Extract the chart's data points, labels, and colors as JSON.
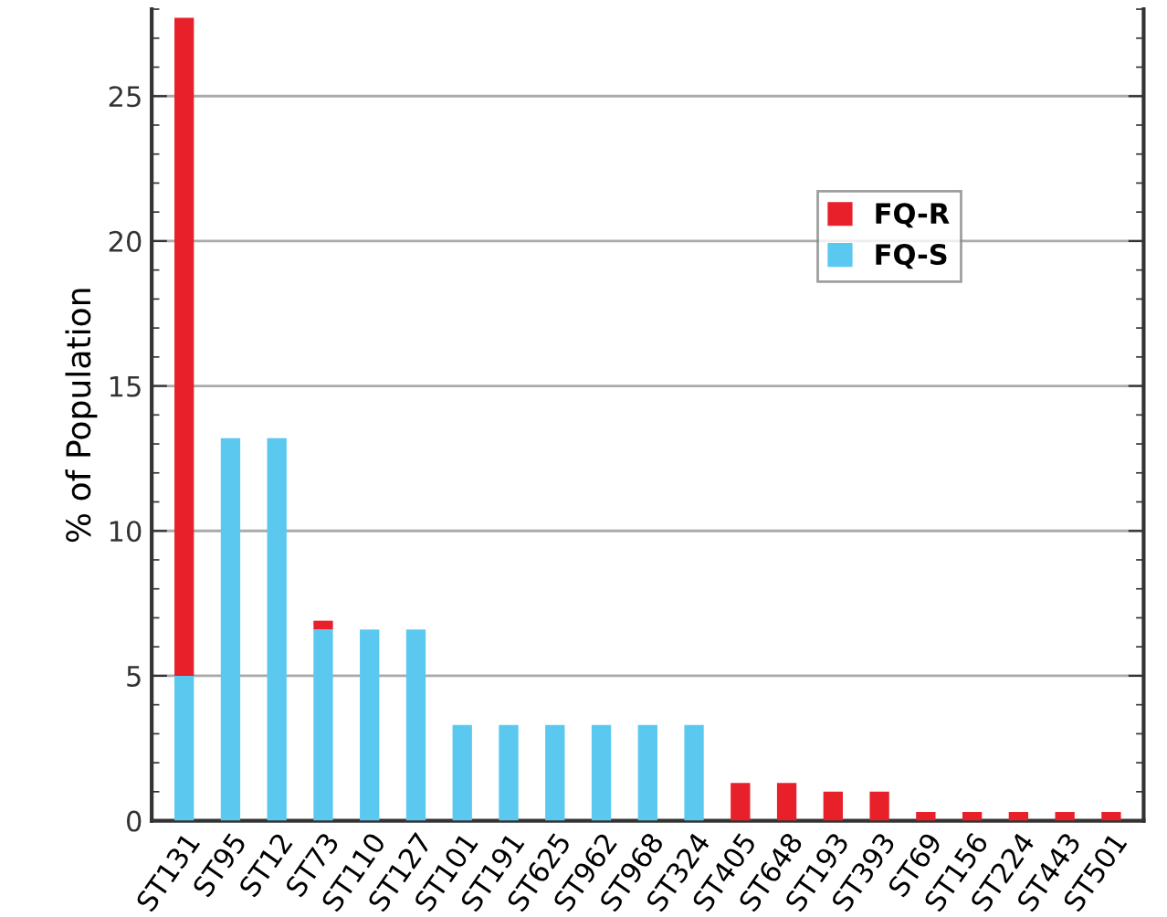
{
  "chart_data": {
    "type": "bar",
    "stacked": true,
    "ylabel": "% of Population",
    "categories": [
      "ST131",
      "ST95",
      "ST12",
      "ST73",
      "ST110",
      "ST127",
      "ST101",
      "ST191",
      "ST625",
      "ST962",
      "ST968",
      "ST324",
      "ST405",
      "ST648",
      "ST193",
      "ST393",
      "ST69",
      "ST156",
      "ST224",
      "ST443",
      "ST501"
    ],
    "series": [
      {
        "name": "FQ-S",
        "color": "#5bc8f0",
        "values": [
          5.0,
          13.2,
          13.2,
          6.6,
          6.6,
          6.6,
          3.3,
          3.3,
          3.3,
          3.3,
          3.3,
          3.3,
          0,
          0,
          0,
          0,
          0,
          0,
          0,
          0,
          0
        ]
      },
      {
        "name": "FQ-R",
        "color": "#e8202a",
        "values": [
          22.7,
          0,
          0,
          0.3,
          0,
          0,
          0,
          0,
          0,
          0,
          0,
          0,
          1.3,
          1.3,
          1.0,
          1.0,
          0.3,
          0.3,
          0.3,
          0.3,
          0.3
        ]
      }
    ],
    "ylim": [
      0,
      28
    ],
    "yticks": [
      0,
      5,
      10,
      15,
      20,
      25
    ],
    "grid": "y",
    "legend": "right"
  }
}
